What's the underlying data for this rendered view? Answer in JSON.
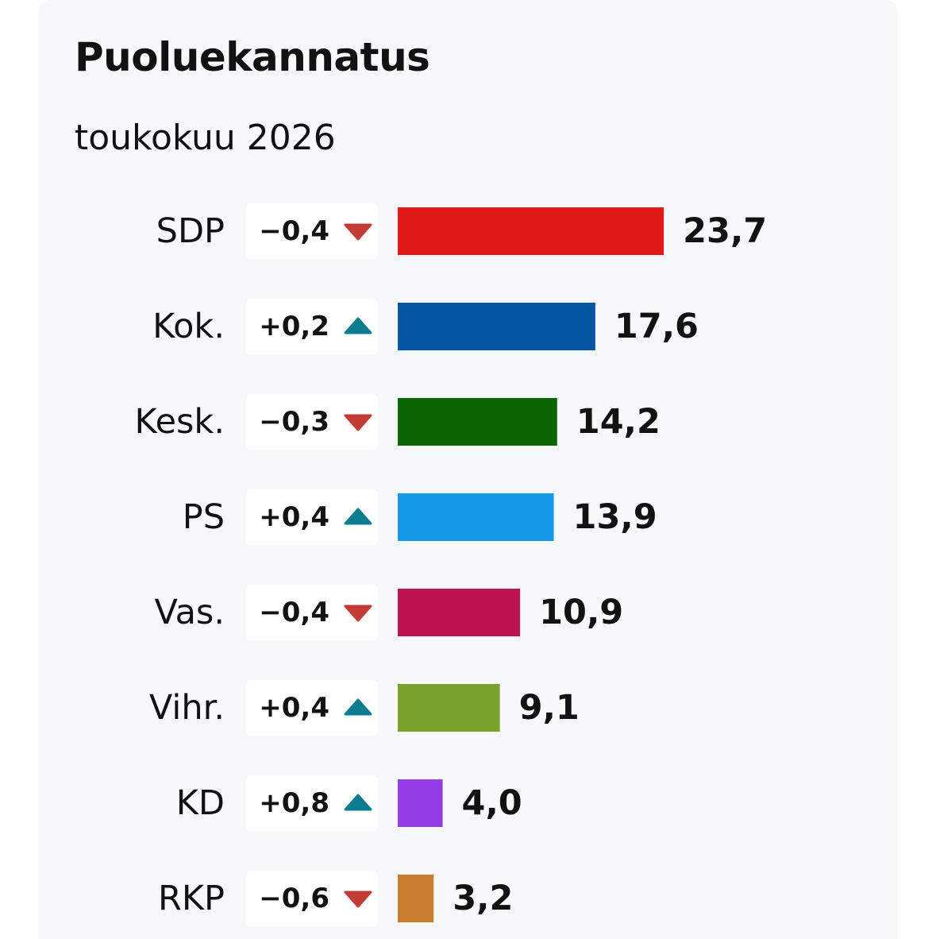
{
  "header": {
    "title": "Puoluekannatus",
    "subtitle": "toukokuu 2026"
  },
  "chart_data": {
    "type": "bar",
    "orientation": "horizontal",
    "title": "Puoluekannatus",
    "subtitle": "toukokuu 2026",
    "categories": [
      "SDP",
      "Kok.",
      "Kesk.",
      "PS",
      "Vas.",
      "Vihr.",
      "KD",
      "RKP"
    ],
    "values": [
      23.7,
      17.6,
      14.2,
      13.9,
      10.9,
      9.1,
      4.0,
      3.2
    ],
    "value_labels": [
      "23,7",
      "17,6",
      "14,2",
      "13,9",
      "10,9",
      "9,1",
      "4,0",
      "3,2"
    ],
    "changes": [
      -0.4,
      0.2,
      -0.3,
      0.4,
      -0.4,
      0.4,
      0.8,
      -0.6
    ],
    "change_labels": [
      "−0,4",
      "+0,2",
      "−0,3",
      "+0,4",
      "−0,4",
      "+0,4",
      "+0,8",
      "−0,6"
    ],
    "colors": [
      "#e11a1a",
      "#0455a3",
      "#0b6702",
      "#1799ea",
      "#bd1451",
      "#79a22a",
      "#933ce8",
      "#c97d2f"
    ],
    "up_color": "#0b7d8f",
    "down_color": "#c43b36",
    "grid": false,
    "legend": "none"
  }
}
